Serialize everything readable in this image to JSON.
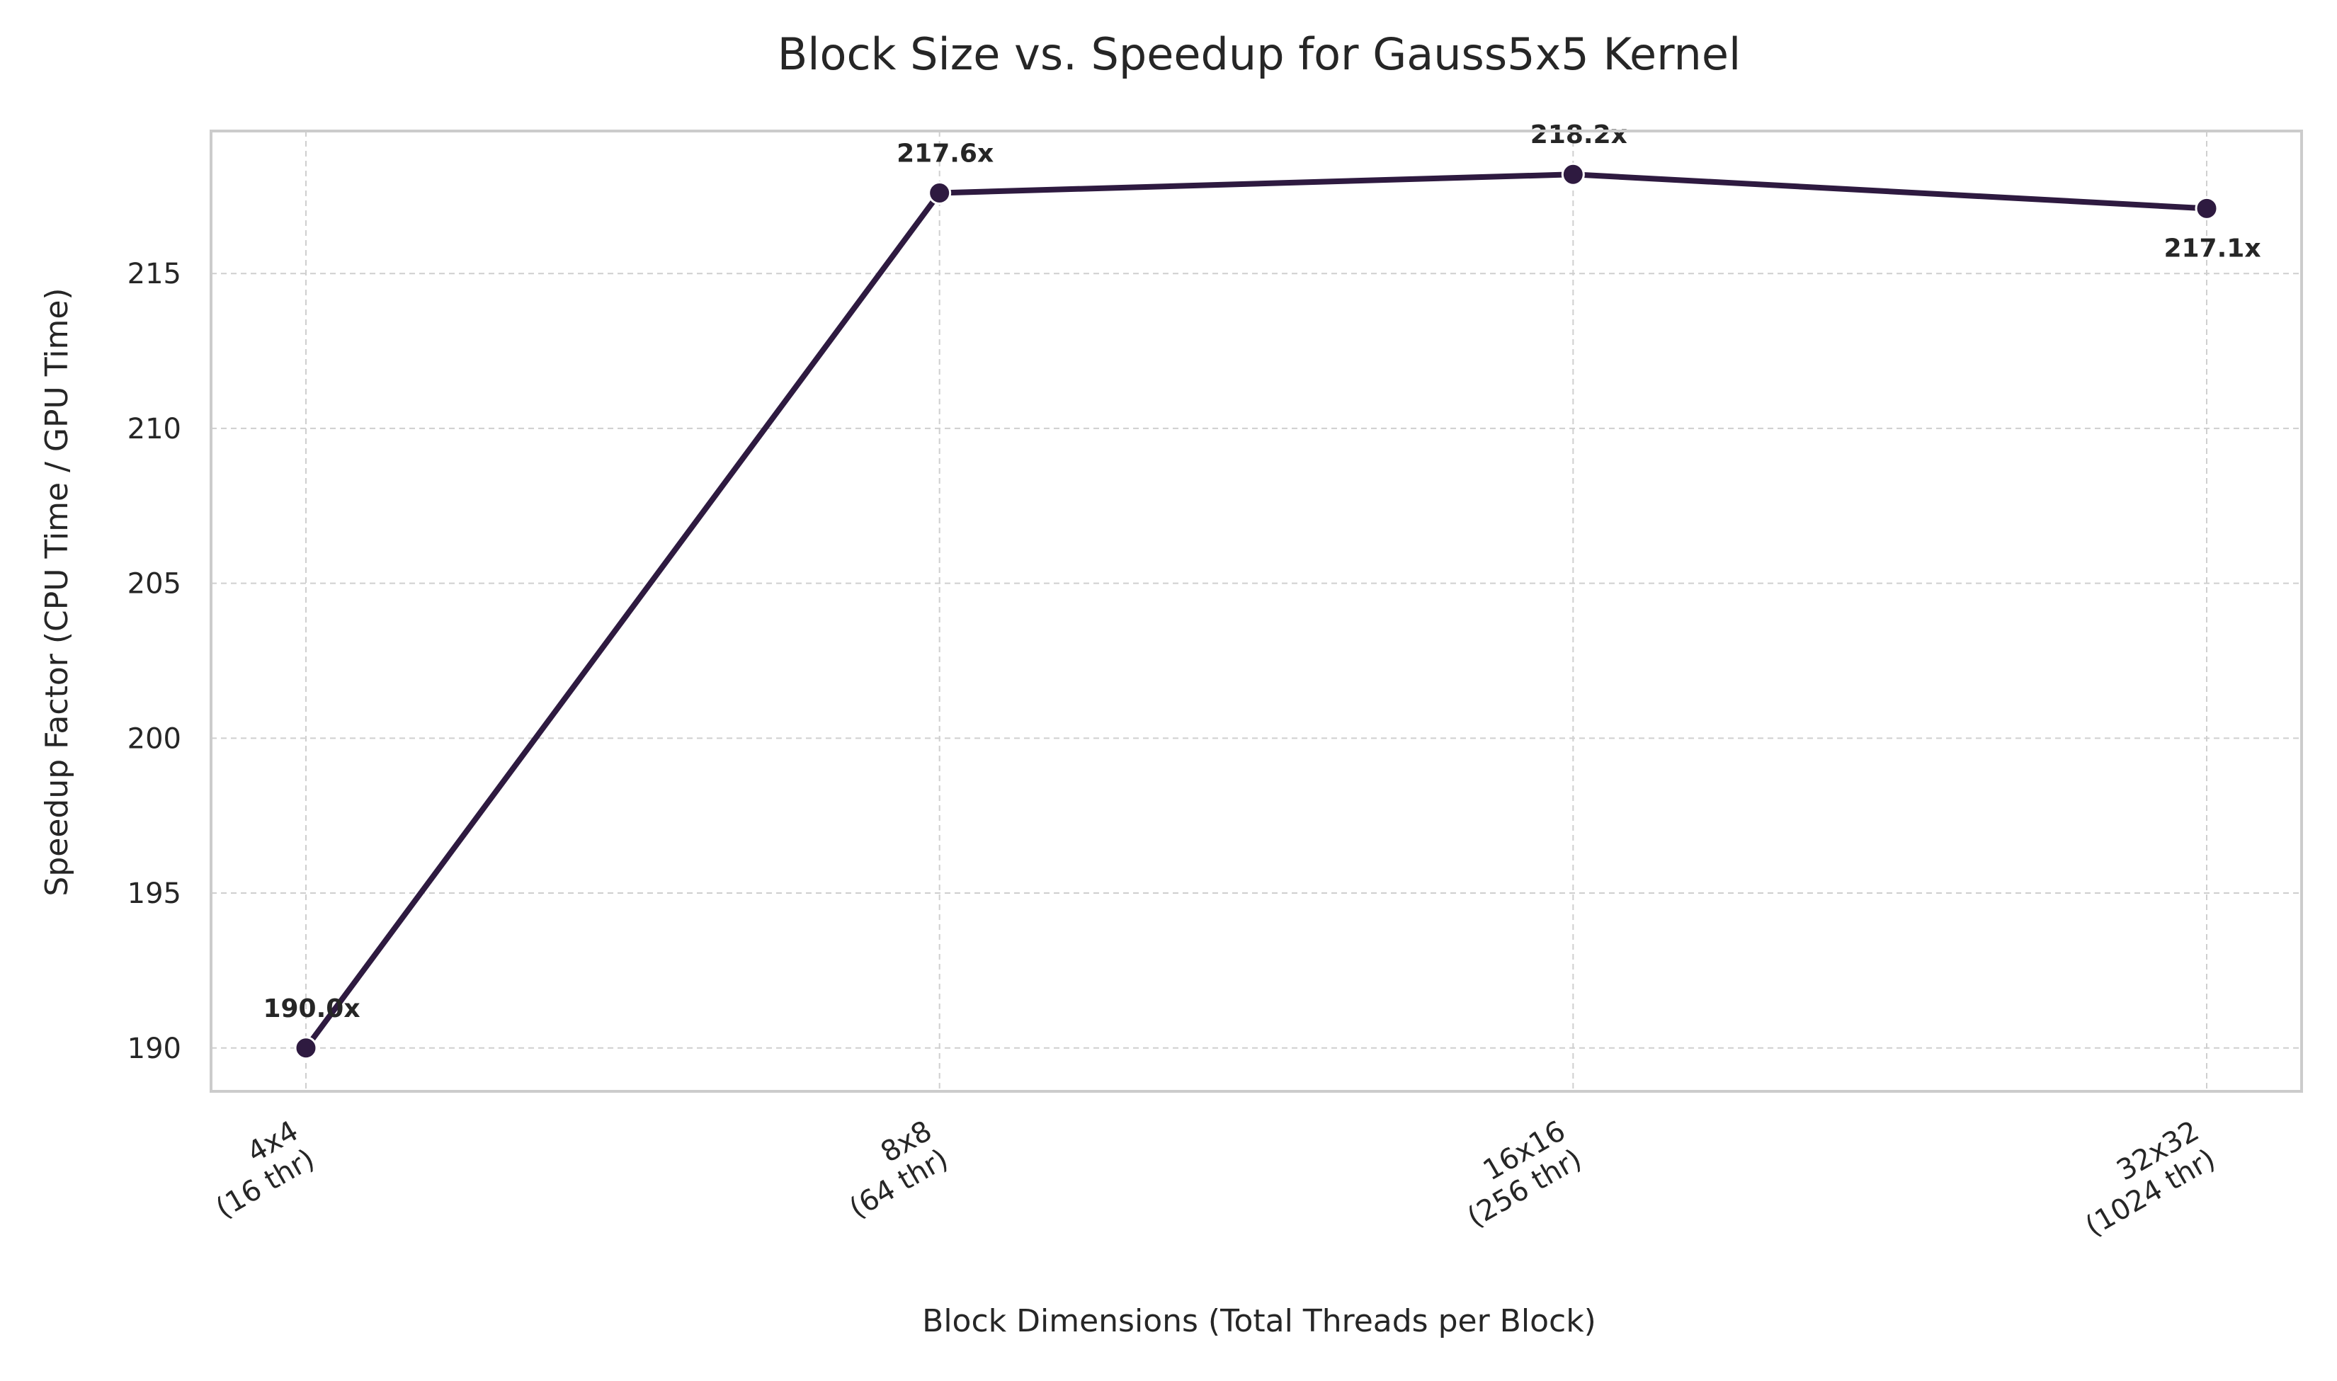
{
  "chart_data": {
    "type": "line",
    "title": "Block Size vs. Speedup for Gauss5x5 Kernel",
    "xlabel": "Block Dimensions (Total Threads per Block)",
    "ylabel": "Speedup Factor (CPU Time / GPU Time)",
    "categories": [
      [
        "4x4",
        "(16 thr)"
      ],
      [
        "8x8",
        "(64 thr)"
      ],
      [
        "16x16",
        "(256 thr)"
      ],
      [
        "32x32",
        "(1024 thr)"
      ]
    ],
    "values": [
      190.0,
      217.6,
      218.2,
      217.1
    ],
    "data_labels": [
      "190.0x",
      "217.6x",
      "218.2x",
      "217.1x"
    ],
    "yticks": [
      190,
      195,
      200,
      205,
      210,
      215
    ],
    "ylim": [
      188.6,
      219.6
    ],
    "grid": true,
    "colors": {
      "line": "#2e1a40",
      "marker": "#2e1a40",
      "marker_edge": "#ffffff"
    }
  }
}
